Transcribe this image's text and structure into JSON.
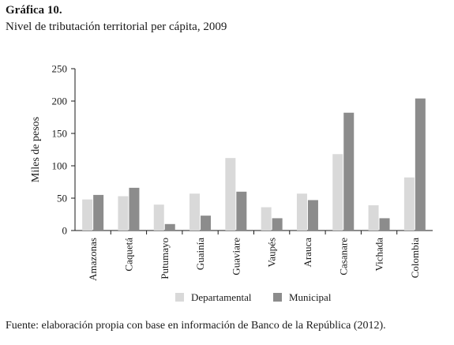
{
  "figure": {
    "title": "Gráfica 10.",
    "subtitle": "Nivel de tributación territorial per cápita, 2009",
    "source": "Fuente: elaboración propia con base en información de Banco de la República (2012)."
  },
  "chart_data": {
    "type": "bar",
    "title": "",
    "xlabel": "",
    "ylabel": "Miles de pesos",
    "ylim": [
      0,
      250
    ],
    "yticks": [
      0,
      50,
      100,
      150,
      200,
      250
    ],
    "grid": false,
    "legend_position": "bottom",
    "categories": [
      "Amazonas",
      "Caquetá",
      "Putumayo",
      "Guainía",
      "Guaviare",
      "Vaupés",
      "Arauca",
      "Casanare",
      "Vichada",
      "Colombia"
    ],
    "series": [
      {
        "name": "Departamental",
        "color": "#d9d9d9",
        "values": [
          48,
          53,
          40,
          57,
          112,
          36,
          57,
          118,
          39,
          82
        ]
      },
      {
        "name": "Municipal",
        "color": "#8c8c8c",
        "values": [
          55,
          66,
          10,
          23,
          60,
          19,
          47,
          182,
          19,
          204
        ]
      }
    ]
  }
}
